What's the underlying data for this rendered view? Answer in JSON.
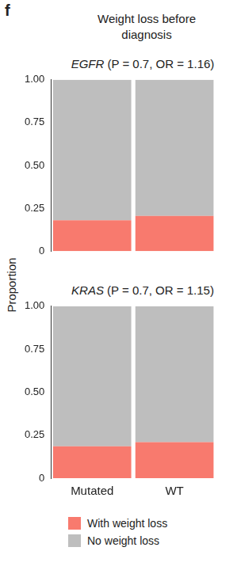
{
  "panel_label": "f",
  "title": "Weight loss before diagnosis",
  "y_label": "Proportion",
  "chart_data": [
    {
      "type": "bar",
      "title": "EGFR (P = 0.7, OR = 1.16)",
      "stacked": true,
      "tick_labels": "y",
      "categories": [
        "Mutated",
        "WT"
      ],
      "series": [
        {
          "name": "With weight loss",
          "color": "#f87a6e",
          "values": [
            0.18,
            0.205
          ]
        },
        {
          "name": "No weight loss",
          "color": "#bebebe",
          "values": [
            0.82,
            0.795
          ]
        }
      ],
      "ylim": [
        0,
        1
      ],
      "yticks": [
        0,
        0.25,
        {
          "value": 0.5,
          "label": "0.50"
        },
        0.75,
        {
          "value": 1,
          "label": "1.00"
        }
      ]
    },
    {
      "type": "bar",
      "title": "KRAS (P = 0.7, OR = 1.15)",
      "stacked": true,
      "legend": "bottom",
      "categories": [
        "Mutated",
        "WT"
      ],
      "series": [
        {
          "name": "With weight loss",
          "color": "#f87a6e",
          "values": [
            0.185,
            0.21
          ]
        },
        {
          "name": "No weight loss",
          "color": "#bebebe",
          "values": [
            0.815,
            0.79
          ]
        }
      ],
      "ylim": [
        0,
        1
      ],
      "yticks": [
        0,
        0.25,
        {
          "value": 0.5,
          "label": "0.50"
        },
        0.75,
        {
          "value": 1,
          "label": "1.00"
        }
      ]
    }
  ]
}
